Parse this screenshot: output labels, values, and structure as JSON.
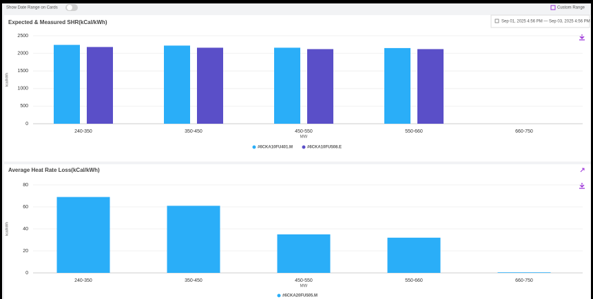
{
  "header": {
    "toggle_label": "Show Date Range on Cards",
    "custom_range": "Custom Range",
    "date_range": "Sep 01, 2025 4:56 PM — Sep 03, 2025 4:56 PM"
  },
  "chart_data": [
    {
      "type": "bar",
      "title": "Expected & Measured SHR(kCal/kWh)",
      "x_label": "MW",
      "y_label": "kcal/kWh",
      "categories": [
        "240-350",
        "350-450",
        "450-550",
        "550-660",
        "660-750"
      ],
      "series": [
        {
          "name": "#6CKA10FU401.M",
          "color": "#2aaef8",
          "values": [
            2240,
            2220,
            2160,
            2150,
            null
          ]
        },
        {
          "name": "#6CKA10FU508.E",
          "color": "#5a4fc8",
          "values": [
            2180,
            2160,
            2120,
            2120,
            null
          ]
        }
      ],
      "ylim": [
        0,
        2500
      ],
      "yticks": [
        0,
        500,
        1000,
        1500,
        2000,
        2500
      ],
      "grid": true
    },
    {
      "type": "bar",
      "title": "Average Heat Rate Loss(kCal/kWh)",
      "x_label": "MW",
      "y_label": "kcal/kWh",
      "categories": [
        "240-350",
        "350-450",
        "450-550",
        "550-660",
        "660-750"
      ],
      "series": [
        {
          "name": "#6CKA20FU505.M",
          "color": "#2aaef8",
          "values": [
            69,
            61,
            35,
            32,
            0.5
          ]
        }
      ],
      "ylim": [
        0,
        80
      ],
      "yticks": [
        0,
        20,
        40,
        60,
        80
      ],
      "grid": true
    }
  ]
}
